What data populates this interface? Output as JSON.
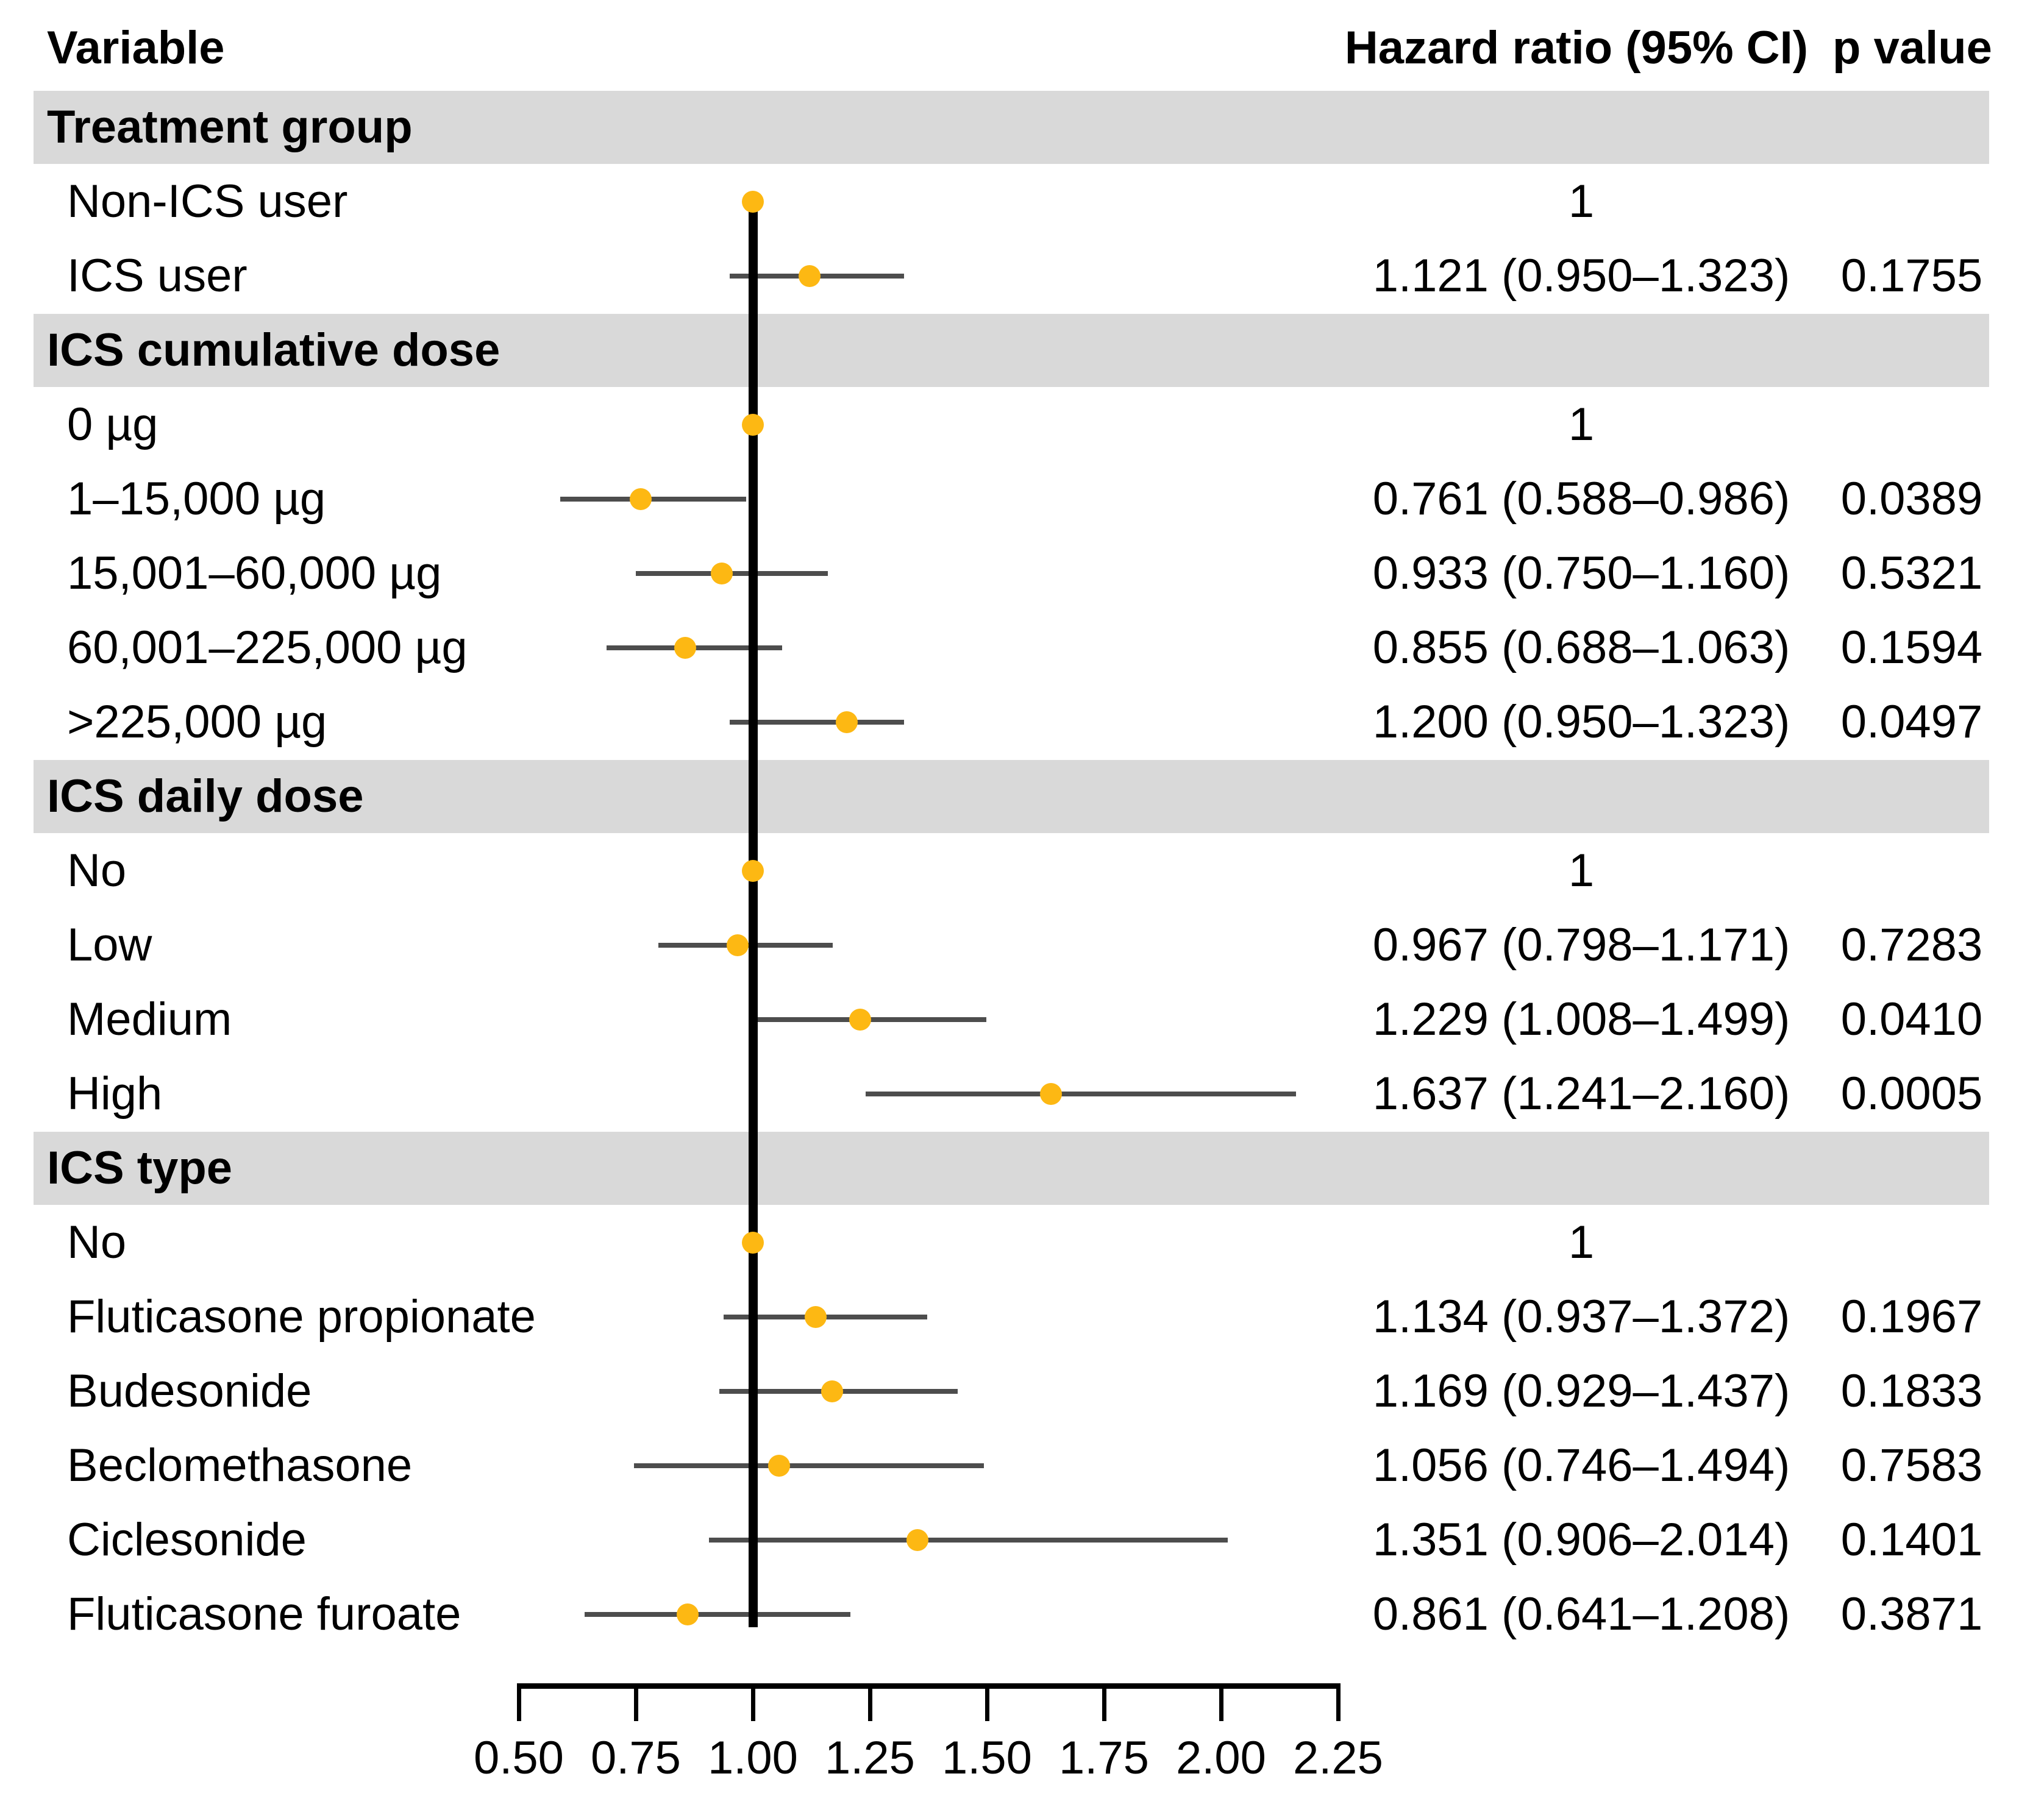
{
  "title_row": {
    "variable": "Variable",
    "hazard_ratio": "Hazard ratio (95% CI)",
    "p_value": "p value"
  },
  "colors": {
    "band_background": "#d9d9d9",
    "marker": "#FDB813",
    "ci_line": "#4d4d4d",
    "reference_line": "#000000",
    "text": "#000000"
  },
  "axis": {
    "tick_labels": [
      "0.50",
      "0.75",
      "1.00",
      "1.25",
      "1.50",
      "1.75",
      "2.00",
      "2.25"
    ],
    "tick_values": [
      0.5,
      0.75,
      1.0,
      1.25,
      1.5,
      1.75,
      2.0,
      2.25
    ],
    "min": 0.5,
    "max": 2.25,
    "reference_value": 1.0
  },
  "sections": [
    {
      "label": "Treatment group",
      "rows": [
        {
          "label": "Non-ICS user",
          "hr_text": "1",
          "p_text": "",
          "reference": true,
          "hr": 1.0,
          "lo": null,
          "hi": null
        },
        {
          "label": "ICS user",
          "hr_text": "1.121 (0.950–1.323)",
          "p_text": "0.1755",
          "reference": false,
          "hr": 1.121,
          "lo": 0.95,
          "hi": 1.323
        }
      ]
    },
    {
      "label": "ICS cumulative dose",
      "rows": [
        {
          "label": "0 µg",
          "hr_text": "1",
          "p_text": "",
          "reference": true,
          "hr": 1.0,
          "lo": null,
          "hi": null
        },
        {
          "label": "1–15,000 µg",
          "hr_text": "0.761 (0.588–0.986)",
          "p_text": "0.0389",
          "reference": false,
          "hr": 0.761,
          "lo": 0.588,
          "hi": 0.986
        },
        {
          "label": "15,001–60,000 µg",
          "hr_text": "0.933 (0.750–1.160)",
          "p_text": "0.5321",
          "reference": false,
          "hr": 0.933,
          "lo": 0.75,
          "hi": 1.16
        },
        {
          "label": "60,001–225,000 µg",
          "hr_text": "0.855 (0.688–1.063)",
          "p_text": "0.1594",
          "reference": false,
          "hr": 0.855,
          "lo": 0.688,
          "hi": 1.063
        },
        {
          "label": ">225,000 µg",
          "hr_text": "1.200 (0.950–1.323)",
          "p_text": "0.0497",
          "reference": false,
          "hr": 1.2,
          "lo": 0.95,
          "hi": 1.323
        }
      ]
    },
    {
      "label": "ICS daily dose",
      "rows": [
        {
          "label": "No",
          "hr_text": "1",
          "p_text": "",
          "reference": true,
          "hr": 1.0,
          "lo": null,
          "hi": null
        },
        {
          "label": "Low",
          "hr_text": "0.967 (0.798–1.171)",
          "p_text": "0.7283",
          "reference": false,
          "hr": 0.967,
          "lo": 0.798,
          "hi": 1.171
        },
        {
          "label": "Medium",
          "hr_text": "1.229 (1.008–1.499)",
          "p_text": "0.0410",
          "reference": false,
          "hr": 1.229,
          "lo": 1.008,
          "hi": 1.499
        },
        {
          "label": "High",
          "hr_text": "1.637 (1.241–2.160)",
          "p_text": "0.0005",
          "reference": false,
          "hr": 1.637,
          "lo": 1.241,
          "hi": 2.16
        }
      ]
    },
    {
      "label": "ICS type",
      "rows": [
        {
          "label": "No",
          "hr_text": "1",
          "p_text": "",
          "reference": true,
          "hr": 1.0,
          "lo": null,
          "hi": null
        },
        {
          "label": "Fluticasone propionate",
          "hr_text": "1.134 (0.937–1.372)",
          "p_text": "0.1967",
          "reference": false,
          "hr": 1.134,
          "lo": 0.937,
          "hi": 1.372
        },
        {
          "label": "Budesonide",
          "hr_text": "1.169 (0.929–1.437)",
          "p_text": "0.1833",
          "reference": false,
          "hr": 1.169,
          "lo": 0.929,
          "hi": 1.437
        },
        {
          "label": "Beclomethasone",
          "hr_text": "1.056 (0.746–1.494)",
          "p_text": "0.7583",
          "reference": false,
          "hr": 1.056,
          "lo": 0.746,
          "hi": 1.494
        },
        {
          "label": "Ciclesonide",
          "hr_text": "1.351 (0.906–2.014)",
          "p_text": "0.1401",
          "reference": false,
          "hr": 1.351,
          "lo": 0.906,
          "hi": 2.014
        },
        {
          "label": "Fluticasone furoate",
          "hr_text": "0.861 (0.641–1.208)",
          "p_text": "0.3871",
          "reference": false,
          "hr": 0.861,
          "lo": 0.641,
          "hi": 1.208
        }
      ]
    }
  ],
  "chart_data": {
    "type": "scatter",
    "subtype": "forest-plot",
    "title": "",
    "xlabel": "Hazard ratio",
    "ylabel": "",
    "xlim": [
      0.5,
      2.25
    ],
    "x_ticks": [
      0.5,
      0.75,
      1.0,
      1.25,
      1.5,
      1.75,
      2.0,
      2.25
    ],
    "reference_line_x": 1.0,
    "grid": false,
    "legend_position": "none",
    "marker_color": "#FDB813",
    "groups": [
      {
        "name": "Treatment group",
        "items": [
          {
            "label": "Non-ICS user",
            "hr": 1.0,
            "ci_low": null,
            "ci_high": null,
            "p": null,
            "reference": true
          },
          {
            "label": "ICS user",
            "hr": 1.121,
            "ci_low": 0.95,
            "ci_high": 1.323,
            "p": 0.1755,
            "reference": false
          }
        ]
      },
      {
        "name": "ICS cumulative dose",
        "items": [
          {
            "label": "0 µg",
            "hr": 1.0,
            "ci_low": null,
            "ci_high": null,
            "p": null,
            "reference": true
          },
          {
            "label": "1–15,000 µg",
            "hr": 0.761,
            "ci_low": 0.588,
            "ci_high": 0.986,
            "p": 0.0389,
            "reference": false
          },
          {
            "label": "15,001–60,000 µg",
            "hr": 0.933,
            "ci_low": 0.75,
            "ci_high": 1.16,
            "p": 0.5321,
            "reference": false
          },
          {
            "label": "60,001–225,000 µg",
            "hr": 0.855,
            "ci_low": 0.688,
            "ci_high": 1.063,
            "p": 0.1594,
            "reference": false
          },
          {
            "label": ">225,000 µg",
            "hr": 1.2,
            "ci_low": 0.95,
            "ci_high": 1.323,
            "p": 0.0497,
            "reference": false
          }
        ]
      },
      {
        "name": "ICS daily dose",
        "items": [
          {
            "label": "No",
            "hr": 1.0,
            "ci_low": null,
            "ci_high": null,
            "p": null,
            "reference": true
          },
          {
            "label": "Low",
            "hr": 0.967,
            "ci_low": 0.798,
            "ci_high": 1.171,
            "p": 0.7283,
            "reference": false
          },
          {
            "label": "Medium",
            "hr": 1.229,
            "ci_low": 1.008,
            "ci_high": 1.499,
            "p": 0.041,
            "reference": false
          },
          {
            "label": "High",
            "hr": 1.637,
            "ci_low": 1.241,
            "ci_high": 2.16,
            "p": 0.0005,
            "reference": false
          }
        ]
      },
      {
        "name": "ICS type",
        "items": [
          {
            "label": "No",
            "hr": 1.0,
            "ci_low": null,
            "ci_high": null,
            "p": null,
            "reference": true
          },
          {
            "label": "Fluticasone propionate",
            "hr": 1.134,
            "ci_low": 0.937,
            "ci_high": 1.372,
            "p": 0.1967,
            "reference": false
          },
          {
            "label": "Budesonide",
            "hr": 1.169,
            "ci_low": 0.929,
            "ci_high": 1.437,
            "p": 0.1833,
            "reference": false
          },
          {
            "label": "Beclomethasone",
            "hr": 1.056,
            "ci_low": 0.746,
            "ci_high": 1.494,
            "p": 0.7583,
            "reference": false
          },
          {
            "label": "Ciclesonide",
            "hr": 1.351,
            "ci_low": 0.906,
            "ci_high": 2.014,
            "p": 0.1401,
            "reference": false
          },
          {
            "label": "Fluticasone furoate",
            "hr": 0.861,
            "ci_low": 0.641,
            "ci_high": 1.208,
            "p": 0.3871,
            "reference": false
          }
        ]
      }
    ]
  }
}
